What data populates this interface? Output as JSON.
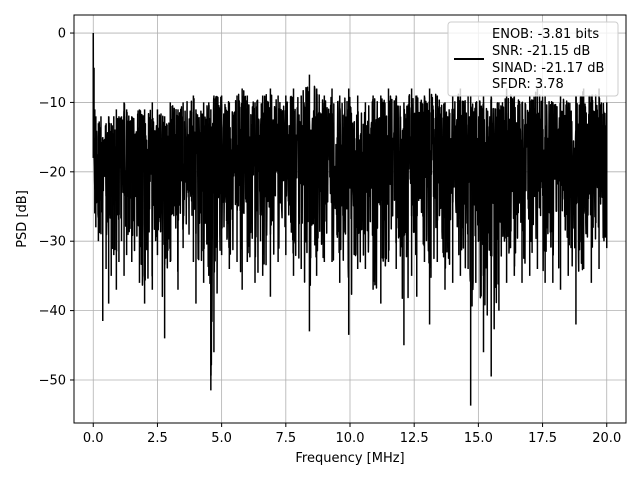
{
  "chart_data": {
    "type": "line",
    "xlabel": "Frequency [MHz]",
    "ylabel": "PSD [dB]",
    "xlim": [
      -0.75,
      20.75
    ],
    "ylim": [
      -56.2,
      2.6
    ],
    "x_ticks": [
      0.0,
      2.5,
      5.0,
      7.5,
      10.0,
      12.5,
      15.0,
      17.5,
      20.0
    ],
    "x_tick_labels": [
      "0.0",
      "2.5",
      "5.0",
      "7.5",
      "10.0",
      "12.5",
      "15.0",
      "17.5",
      "20.0"
    ],
    "y_ticks": [
      0,
      -10,
      -20,
      -30,
      -40,
      -50
    ],
    "y_tick_labels": [
      "0",
      "−10",
      "−20",
      "−30",
      "−40",
      "−50"
    ],
    "grid": true,
    "legend_position": "top-right",
    "legend_lines": [
      "ENOB: -3.81 bits",
      "SNR: -21.15 dB",
      "SINAD: -21.17 dB",
      "SFDR: 3.78"
    ],
    "series": [
      {
        "color": "#000000",
        "x": [
          0.0,
          0.03,
          0.06,
          0.1,
          0.2,
          0.3,
          0.37,
          0.5,
          0.6,
          0.7,
          0.8,
          0.9,
          1.0,
          1.1,
          1.2,
          1.3,
          1.5,
          1.8,
          2.0,
          2.3,
          2.5,
          2.78,
          3.0,
          3.3,
          3.5,
          3.9,
          4.0,
          4.3,
          4.5,
          4.58,
          4.7,
          5.0,
          5.3,
          5.6,
          5.8,
          6.0,
          6.3,
          6.6,
          6.9,
          7.2,
          7.5,
          7.8,
          8.1,
          8.42,
          8.7,
          9.0,
          9.3,
          9.6,
          9.95,
          10.3,
          10.6,
          10.9,
          11.2,
          11.5,
          11.8,
          12.1,
          12.4,
          12.6,
          12.9,
          13.1,
          13.4,
          13.7,
          14.0,
          14.3,
          14.6,
          14.7,
          14.9,
          15.2,
          15.5,
          15.8,
          16.1,
          16.4,
          16.7,
          17.0,
          17.3,
          17.6,
          17.9,
          18.2,
          18.5,
          18.8,
          19.1,
          19.4,
          19.7,
          20.0
        ],
        "y_low": [
          -18,
          -14,
          -26,
          -28,
          -30,
          -29,
          -41.5,
          -34,
          -39,
          -35,
          -32,
          -37,
          -33,
          -30,
          -35,
          -32,
          -33,
          -36,
          -39,
          -37,
          -32,
          -44,
          -33,
          -37,
          -31,
          -33,
          -39,
          -36,
          -35,
          -51.5,
          -46,
          -32,
          -34,
          -33,
          -37,
          -33,
          -36,
          -35,
          -38,
          -33,
          -32,
          -35,
          -34,
          -43,
          -35,
          -33,
          -33,
          -36,
          -43.5,
          -34,
          -34,
          -37,
          -39,
          -33,
          -34,
          -45,
          -35,
          -38,
          -33,
          -42,
          -33,
          -37,
          -36,
          -35,
          -34,
          -53.7,
          -36,
          -46,
          -49.5,
          -40,
          -36,
          -35,
          -36,
          -35,
          -34,
          -36,
          -36,
          -37,
          -35,
          -42,
          -34,
          -36,
          -34,
          -31
        ],
        "y_high": [
          0,
          -5,
          -11,
          -12,
          -13,
          -12,
          -15,
          -13,
          -12,
          -13,
          -12,
          -11,
          -12,
          -12,
          -10,
          -11,
          -12,
          -11,
          -11,
          -10,
          -11,
          -12,
          -10,
          -11,
          -10,
          -9,
          -11,
          -10,
          -10,
          -11,
          -9,
          -9,
          -10,
          -9,
          -8,
          -9,
          -10,
          -9,
          -8,
          -9,
          -9,
          -8,
          -9,
          -6,
          -8,
          -9,
          -8,
          -9,
          -8,
          -9,
          -10,
          -9,
          -9,
          -8,
          -9,
          -10,
          -8,
          -9,
          -9,
          -8,
          -9,
          -10,
          -9,
          -8,
          -9,
          -9,
          -10,
          -9,
          -9,
          -10,
          -8,
          -9,
          -10,
          -9,
          -8,
          -9,
          -10,
          -9,
          -10,
          -9,
          -8,
          -9,
          -8,
          -10
        ]
      }
    ]
  }
}
